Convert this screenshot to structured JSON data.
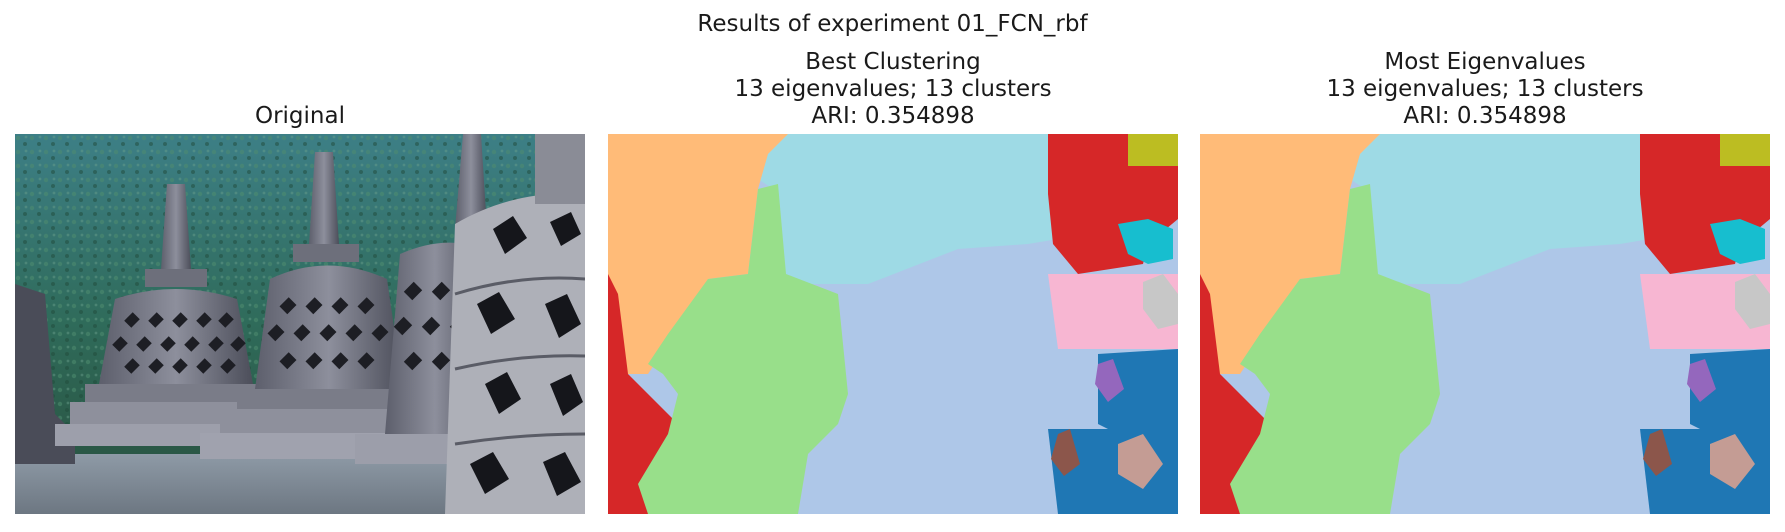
{
  "figure": {
    "suptitle": "Results of experiment 01_FCN_rbf"
  },
  "panels": [
    {
      "title_lines": [
        "Original"
      ],
      "image_icon": "photo-temple-stupas"
    },
    {
      "title_lines": [
        "Best Clustering",
        "13 eigenvalues; 13 clusters",
        "ARI: 0.354898"
      ],
      "image_icon": "segmentation-map"
    },
    {
      "title_lines": [
        "Most Eigenvalues",
        "13 eigenvalues; 13 clusters",
        "ARI: 0.354898"
      ],
      "image_icon": "segmentation-map"
    }
  ],
  "colors": {
    "orange": "#ffbb78",
    "light_cyan": "#9edae5",
    "green": "#98df8a",
    "light_blue": "#aec7e8",
    "red": "#d62728",
    "olive": "#bcbd22",
    "cyan": "#17becf",
    "pink": "#f7b6d2",
    "gray": "#c7c7c7",
    "blue": "#1f77b4",
    "purple": "#9467bd",
    "brown": "#8c564b",
    "rose": "#c49c94"
  }
}
